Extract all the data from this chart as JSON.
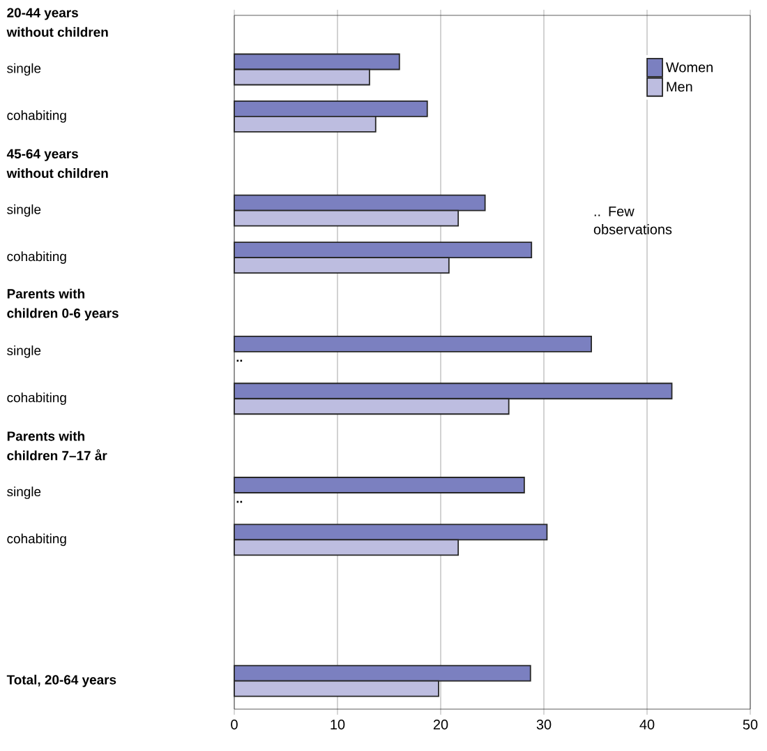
{
  "chart_data": {
    "type": "bar",
    "orientation": "horizontal",
    "categories": [
      "20-44 years without children",
      "single",
      "cohabiting",
      "45-64 years without children",
      "single",
      "cohabiting",
      "Parents with children 0-6 years",
      "single",
      "cohabiting",
      "Parents with children 7–17 år",
      "single",
      "cohabiting",
      null,
      null,
      "Total, 20-64 years"
    ],
    "series": [
      {
        "name": "Women",
        "color": "#7b80c0",
        "values": [
          null,
          16.0,
          18.7,
          null,
          24.3,
          28.8,
          null,
          34.6,
          42.4,
          null,
          28.1,
          30.3,
          null,
          null,
          28.7
        ]
      },
      {
        "name": "Men",
        "color": "#bdbde0",
        "values": [
          null,
          13.1,
          13.7,
          null,
          21.7,
          20.8,
          null,
          null,
          26.6,
          null,
          null,
          21.7,
          null,
          null,
          19.8
        ],
        "value_labels": [
          null,
          null,
          null,
          null,
          null,
          null,
          null,
          "..",
          null,
          null,
          "..",
          null,
          null,
          null,
          null
        ]
      }
    ],
    "xlim": [
      0,
      50
    ],
    "xticks": [
      0,
      10,
      20,
      30,
      40,
      50
    ],
    "grid": "x",
    "legend": "top right",
    "annotations": [
      ".. Few observations"
    ]
  }
}
